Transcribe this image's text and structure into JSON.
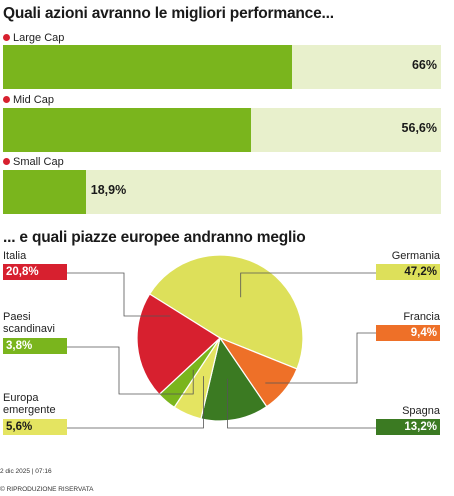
{
  "chart_data": [
    {
      "type": "bar",
      "title": "Quali azioni avranno le migliori performance...",
      "categories": [
        "Large Cap",
        "Mid Cap",
        "Small Cap"
      ],
      "values": [
        66,
        56.6,
        18.9
      ],
      "value_labels": [
        "66%",
        "56,6%",
        "18,9%"
      ],
      "xlim": [
        0,
        100
      ],
      "colors": {
        "fill": "#7ab51d",
        "track": "#e8f0cc",
        "marker": "#d7202f"
      }
    },
    {
      "type": "pie",
      "title": "... e quali piazze europee andranno meglio",
      "categories": [
        "Germania",
        "Francia",
        "Spagna",
        "Europa emergente",
        "Paesi scandinavi",
        "Italia"
      ],
      "label_lines": [
        [
          "Germania"
        ],
        [
          "Francia"
        ],
        [
          "Spagna"
        ],
        [
          "Europa",
          "emergente"
        ],
        [
          "Paesi",
          "scandinavi"
        ],
        [
          "Italia"
        ]
      ],
      "values": [
        47.2,
        9.4,
        13.2,
        5.6,
        3.8,
        20.8
      ],
      "value_labels": [
        "47,2%",
        "9,4%",
        "13,2%",
        "5,6%",
        "3,8%",
        "20,8%"
      ],
      "colors": [
        "#dde05a",
        "#ee7028",
        "#3b7a22",
        "#e4e461",
        "#7ab51d",
        "#d7202f"
      ],
      "badge_text_colors": [
        "#1a1a1a",
        "#ffffff",
        "#ffffff",
        "#1a1a1a",
        "#ffffff",
        "#ffffff"
      ]
    }
  ],
  "footer": {
    "date": "2 dic 2025 | 07:16",
    "rights": "© RIPRODUZIONE RISERVATA"
  }
}
